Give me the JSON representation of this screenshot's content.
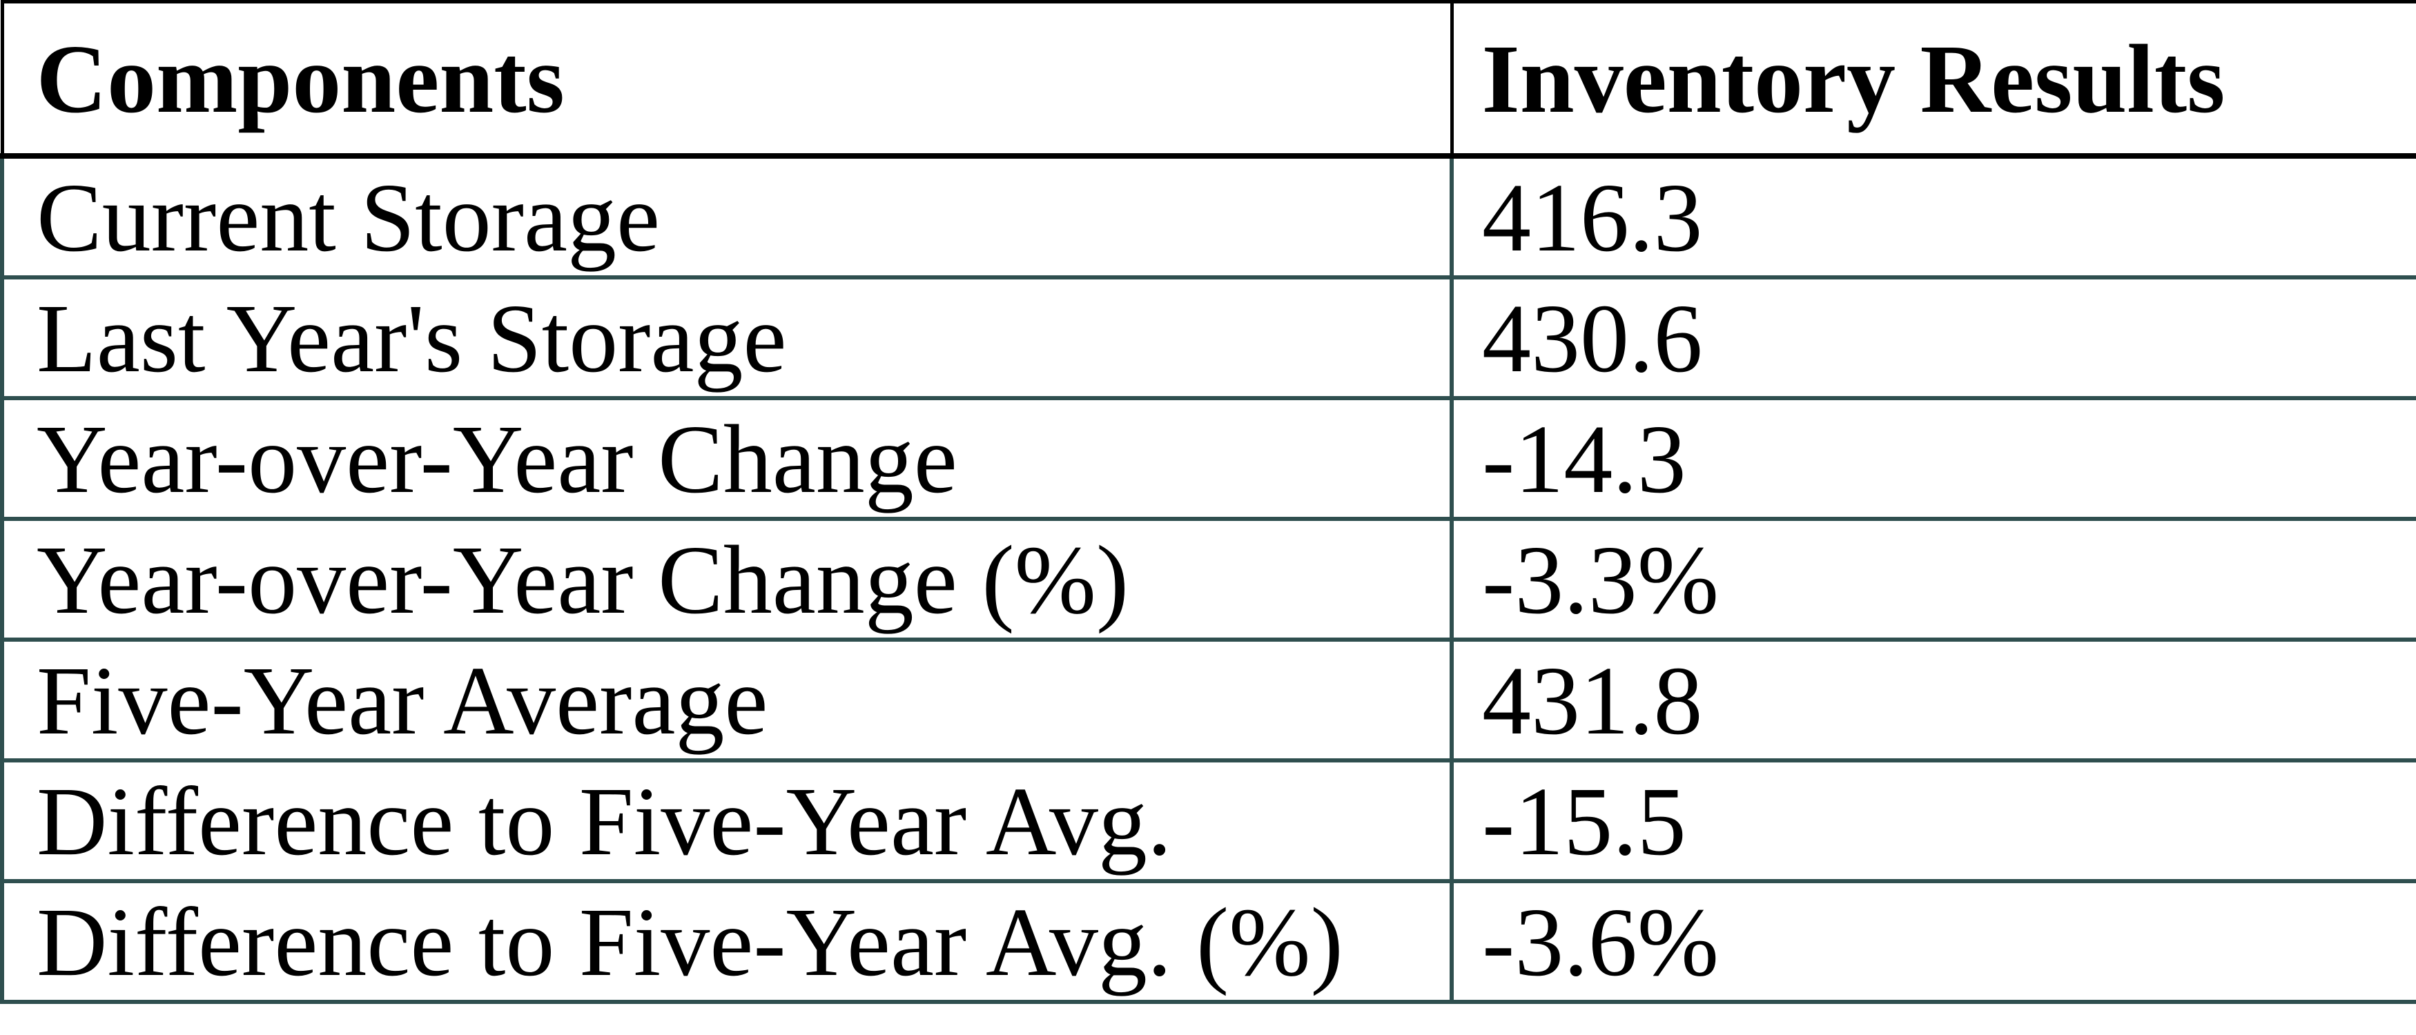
{
  "colors": {
    "header_border": "#000000",
    "body_border": "#2F4F4F",
    "text": "#000000",
    "background": "#FFFFFF"
  },
  "chart_data": {
    "type": "table",
    "columns": [
      "Components",
      "Inventory Results"
    ],
    "rows": [
      [
        "Current Storage",
        "416.3"
      ],
      [
        "Last Year's Storage",
        "430.6"
      ],
      [
        "Year-over-Year Change",
        "-14.3"
      ],
      [
        "Year-over-Year Change (%)",
        "-3.3%"
      ],
      [
        "Five-Year Average",
        "431.8"
      ],
      [
        "Difference to Five-Year Avg.",
        "-15.5"
      ],
      [
        "Difference to Five-Year Avg. (%)",
        "-3.6%"
      ]
    ]
  }
}
